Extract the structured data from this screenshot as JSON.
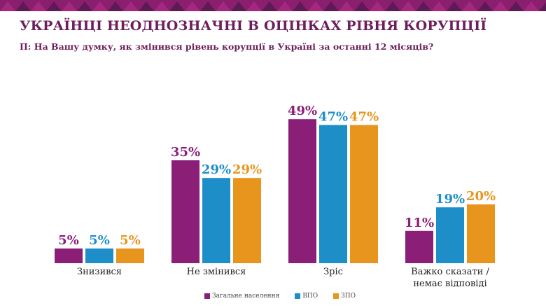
{
  "header": {
    "title": "УКРАЇНЦІ НЕОДНОЗНАЧНІ В ОЦІНКАХ РІВНЯ КОРУПЦІЇ",
    "subtitle": "П: На Вашу думку, як змінився рівень корупції в Україні за останні 12 місяців?"
  },
  "chart_data": {
    "type": "bar",
    "categories": [
      [
        "Знизився"
      ],
      [
        "Не змінився"
      ],
      [
        "Зріс"
      ],
      [
        "Важко сказати /",
        "немає відповіді"
      ]
    ],
    "series": [
      {
        "name": "Загальне населення",
        "color": "#8b1f78",
        "values": [
          5,
          35,
          49,
          11
        ]
      },
      {
        "name": "ВПО",
        "color": "#1e8ec9",
        "values": [
          5,
          29,
          47,
          19
        ]
      },
      {
        "name": "ЗПО",
        "color": "#e8951e",
        "values": [
          5,
          29,
          47,
          20
        ]
      }
    ],
    "value_suffix": "%",
    "ylim": [
      0,
      55
    ],
    "grid": false,
    "legend": "bottom"
  }
}
